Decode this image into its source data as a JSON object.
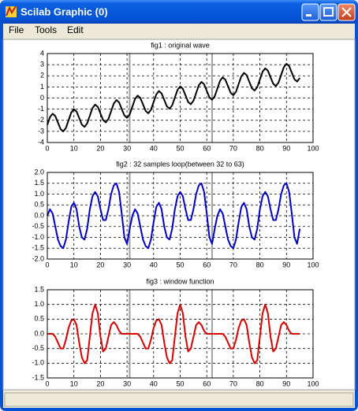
{
  "window": {
    "title": "Scilab Graphic (0)",
    "menu": [
      "File",
      "Tools",
      "Edit"
    ]
  },
  "chart_data": [
    {
      "type": "line",
      "title": "fig1 : original wave",
      "color": "#000000",
      "x": [
        0,
        1,
        2,
        3,
        4,
        5,
        6,
        7,
        8,
        9,
        10,
        11,
        12,
        13,
        14,
        15,
        16,
        17,
        18,
        19,
        20,
        21,
        22,
        23,
        24,
        25,
        26,
        27,
        28,
        29,
        30,
        31,
        32,
        33,
        34,
        35,
        36,
        37,
        38,
        39,
        40,
        41,
        42,
        43,
        44,
        45,
        46,
        47,
        48,
        49,
        50,
        51,
        52,
        53,
        54,
        55,
        56,
        57,
        58,
        59,
        60,
        61,
        62,
        63,
        64,
        65,
        66,
        67,
        68,
        69,
        70,
        71,
        72,
        73,
        74,
        75,
        76,
        77,
        78,
        79,
        80,
        81,
        82,
        83,
        84,
        85,
        86,
        87,
        88,
        89,
        90,
        91,
        92,
        93,
        94,
        95
      ],
      "values": [
        -2.41,
        -1.72,
        -1.41,
        -1.62,
        -2.21,
        -2.8,
        -3.0,
        -2.69,
        -2.0,
        -1.31,
        -1.0,
        -1.21,
        -1.8,
        -2.39,
        -2.6,
        -2.28,
        -1.59,
        -0.9,
        -0.59,
        -0.8,
        -1.39,
        -1.98,
        -2.19,
        -1.88,
        -1.19,
        -0.5,
        -0.18,
        -0.39,
        -0.98,
        -1.57,
        -1.78,
        -1.47,
        -0.78,
        -0.09,
        0.22,
        0.01,
        -0.57,
        -1.16,
        -1.37,
        -1.06,
        -0.37,
        0.32,
        0.63,
        0.42,
        -0.17,
        -0.75,
        -0.96,
        -0.65,
        0.04,
        0.73,
        1.04,
        0.83,
        0.24,
        -0.35,
        -0.56,
        -0.24,
        0.45,
        1.14,
        1.45,
        1.24,
        0.65,
        0.06,
        -0.15,
        0.16,
        0.85,
        1.55,
        1.86,
        1.65,
        1.06,
        0.47,
        0.26,
        0.57,
        1.26,
        1.95,
        2.26,
        2.06,
        1.47,
        0.88,
        0.67,
        0.98,
        1.67,
        2.36,
        2.67,
        2.46,
        1.87,
        1.29,
        1.08,
        1.39,
        2.08,
        2.77,
        3.08,
        2.87,
        2.28,
        1.69,
        1.48,
        1.8
      ],
      "markers": [
        31,
        62
      ],
      "marker_color": "#a0a0a0",
      "xlim": [
        0,
        100
      ],
      "xticks": [
        0,
        10,
        20,
        30,
        40,
        50,
        60,
        70,
        80,
        90,
        100
      ],
      "ylim": [
        -4,
        4
      ],
      "yticks": [
        -4,
        -3,
        -2,
        -1,
        0,
        1,
        2,
        3,
        4
      ],
      "grid": true
    },
    {
      "type": "line",
      "title": "fig2 : 32 samples loop(between 32 to 63)",
      "color": "#0000cc",
      "x": [
        0,
        1,
        2,
        3,
        4,
        5,
        6,
        7,
        8,
        9,
        10,
        11,
        12,
        13,
        14,
        15,
        16,
        17,
        18,
        19,
        20,
        21,
        22,
        23,
        24,
        25,
        26,
        27,
        28,
        29,
        30,
        31,
        32,
        33,
        34,
        35,
        36,
        37,
        38,
        39,
        40,
        41,
        42,
        43,
        44,
        45,
        46,
        47,
        48,
        49,
        50,
        51,
        52,
        53,
        54,
        55,
        56,
        57,
        58,
        59,
        60,
        61,
        62,
        63,
        64,
        65,
        66,
        67,
        68,
        69,
        70,
        71,
        72,
        73,
        74,
        75,
        76,
        77,
        78,
        79,
        80,
        81,
        82,
        83,
        84,
        85,
        86,
        87,
        88,
        89,
        90,
        91,
        92,
        93,
        94,
        95
      ],
      "values": [
        0.0,
        0.3,
        0.1,
        -0.5,
        -1.1,
        -1.4,
        -1.5,
        -1.1,
        -0.3,
        0.4,
        0.6,
        0.3,
        -0.5,
        -1.0,
        -1.1,
        -0.6,
        0.3,
        0.9,
        1.1,
        0.9,
        0.3,
        -0.2,
        -0.2,
        0.3,
        1.0,
        1.4,
        1.5,
        1.1,
        0.1,
        -1.0,
        -1.3,
        -0.6,
        0.0,
        0.3,
        0.1,
        -0.5,
        -1.1,
        -1.4,
        -1.5,
        -1.1,
        -0.3,
        0.4,
        0.6,
        0.3,
        -0.5,
        -1.0,
        -1.1,
        -0.6,
        0.3,
        0.9,
        1.1,
        0.9,
        0.3,
        -0.2,
        -0.2,
        0.3,
        1.0,
        1.4,
        1.5,
        1.1,
        0.1,
        -1.0,
        -1.3,
        -0.6,
        0.0,
        0.3,
        0.1,
        -0.5,
        -1.1,
        -1.4,
        -1.5,
        -1.1,
        -0.3,
        0.4,
        0.6,
        0.3,
        -0.5,
        -1.0,
        -1.1,
        -0.6,
        0.3,
        0.9,
        1.1,
        0.9,
        0.3,
        -0.2,
        -0.2,
        0.3,
        1.0,
        1.4,
        1.5,
        1.1,
        0.1,
        -1.0,
        -1.3,
        -0.6
      ],
      "markers": [
        31,
        62
      ],
      "marker_color": "#a0a0a0",
      "xlim": [
        0,
        100
      ],
      "xticks": [
        0,
        10,
        20,
        30,
        40,
        50,
        60,
        70,
        80,
        90,
        100
      ],
      "ylim": [
        -2,
        2
      ],
      "yticks": [
        {
          "value": -2,
          "label": "-2.0"
        },
        -1.5,
        {
          "value": -1,
          "label": "-1.0"
        },
        -0.5,
        {
          "value": 0,
          "label": "0.0"
        },
        0.5,
        {
          "value": 1,
          "label": "1.0"
        },
        1.5,
        {
          "value": 2,
          "label": "2.0"
        }
      ],
      "grid": true
    },
    {
      "type": "line",
      "title": "fig3 : window function",
      "color": "#dd0000",
      "x": [
        0,
        1,
        2,
        3,
        4,
        5,
        6,
        7,
        8,
        9,
        10,
        11,
        12,
        13,
        14,
        15,
        16,
        17,
        18,
        19,
        20,
        21,
        22,
        23,
        24,
        25,
        26,
        27,
        28,
        29,
        30,
        31,
        32,
        33,
        34,
        35,
        36,
        37,
        38,
        39,
        40,
        41,
        42,
        43,
        44,
        45,
        46,
        47,
        48,
        49,
        50,
        51,
        52,
        53,
        54,
        55,
        56,
        57,
        58,
        59,
        60,
        61,
        62,
        63,
        64,
        65,
        66,
        67,
        68,
        69,
        70,
        71,
        72,
        73,
        74,
        75,
        76,
        77,
        78,
        79,
        80,
        81,
        82,
        83,
        84,
        85,
        86,
        87,
        88,
        89,
        90,
        91,
        92,
        93,
        94,
        95
      ],
      "values": [
        0,
        0,
        0,
        -0.1,
        -0.3,
        -0.5,
        -0.5,
        -0.2,
        0.2,
        0.45,
        0.5,
        0.3,
        -0.3,
        -0.8,
        -1.0,
        -0.9,
        -0.1,
        0.7,
        1.0,
        0.7,
        -0.1,
        -0.6,
        -0.5,
        -0.1,
        0.3,
        0.4,
        0.3,
        0.1,
        0,
        0,
        0,
        0,
        0,
        0,
        0,
        -0.1,
        -0.3,
        -0.5,
        -0.5,
        -0.2,
        0.2,
        0.45,
        0.5,
        0.3,
        -0.3,
        -0.8,
        -1.0,
        -0.9,
        -0.1,
        0.7,
        1.0,
        0.7,
        -0.1,
        -0.6,
        -0.5,
        -0.1,
        0.3,
        0.4,
        0.3,
        0.1,
        0,
        0,
        0,
        0,
        0,
        0,
        0,
        -0.1,
        -0.3,
        -0.5,
        -0.5,
        -0.2,
        0.2,
        0.45,
        0.5,
        0.3,
        -0.3,
        -0.8,
        -1.0,
        -0.9,
        -0.1,
        0.7,
        1.0,
        0.7,
        -0.1,
        -0.6,
        -0.5,
        -0.1,
        0.3,
        0.4,
        0.3,
        0.1,
        0,
        0,
        0,
        0
      ],
      "markers": [
        31,
        62
      ],
      "marker_color": "#a0a0a0",
      "xlim": [
        0,
        100
      ],
      "xticks": [
        0,
        10,
        20,
        30,
        40,
        50,
        60,
        70,
        80,
        90,
        100
      ],
      "ylim": [
        -1.5,
        1.5
      ],
      "yticks": [
        -1.5,
        {
          "value": -1,
          "label": "-1.0"
        },
        -0.5,
        {
          "value": 0,
          "label": "0.0"
        },
        0.5,
        {
          "value": 1,
          "label": "1.0"
        },
        1.5
      ],
      "grid": true
    }
  ]
}
